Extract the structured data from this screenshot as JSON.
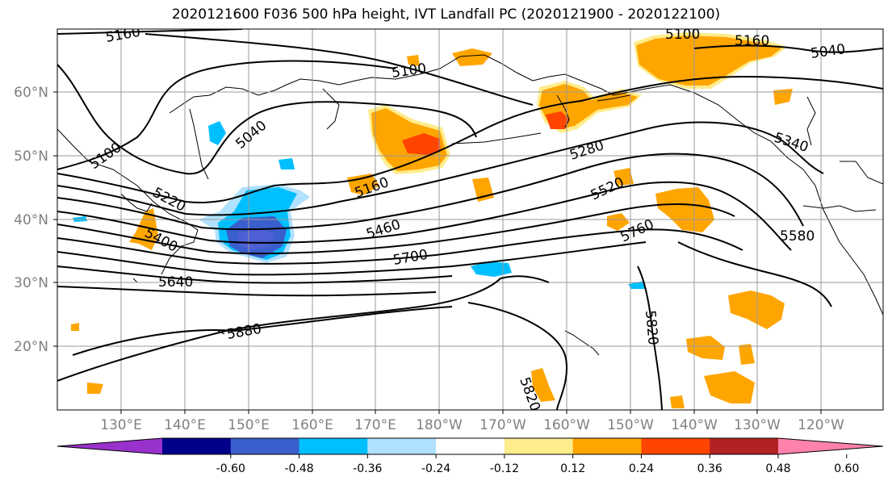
{
  "title": "2020121600 F036 500 hPa height, IVT Landfall PC (2020121900 - 2020122100)",
  "lon_labels": [
    "130°E",
    "140°E",
    "150°E",
    "160°E",
    "170°E",
    "180°W",
    "170°W",
    "160°W",
    "150°W",
    "140°W",
    "130°W",
    "120°W"
  ],
  "lat_labels": [
    "60°N",
    "50°N",
    "40°N",
    "30°N",
    "20°N"
  ],
  "contour_labels": [
    "5160",
    "5100",
    "5100",
    "5160",
    "5040",
    "5100",
    "5040",
    "5220",
    "5400",
    "5640",
    "5880",
    "5160",
    "5460",
    "5700",
    "5280",
    "5520",
    "5760",
    "5340",
    "5580",
    "5820",
    "5820"
  ],
  "colorbar": {
    "colors": [
      "#9932cc",
      "#00008b",
      "#3a5fcd",
      "#00bfff",
      "#b0e2ff",
      "#ffffff",
      "#ffec8b",
      "#ffa500",
      "#ff4500",
      "#b22222",
      "#ff82ab"
    ],
    "tick_labels": [
      "-0.60",
      "-0.48",
      "-0.36",
      "-0.24",
      "-0.12",
      "0.12",
      "0.24",
      "0.36",
      "0.48",
      "0.60"
    ]
  }
}
